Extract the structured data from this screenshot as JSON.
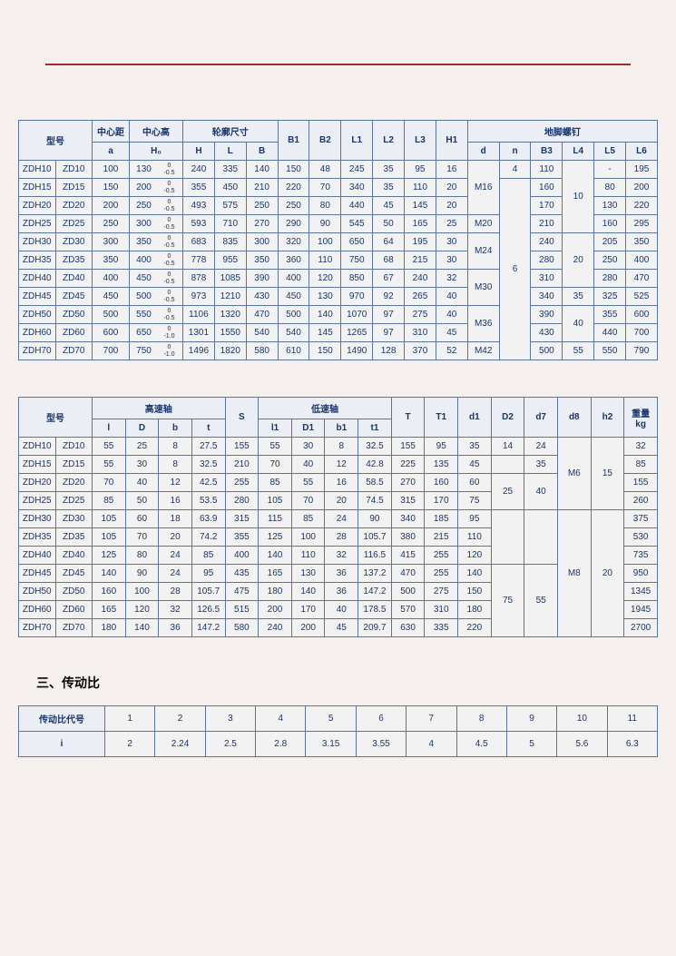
{
  "theme": {
    "border_color": "#5a7599",
    "header_bg": "#ebeff5",
    "cell_bg": "#f2f2f2",
    "line_color": "#9a2e2e",
    "text_color": "#19356c",
    "font_size_pt": 10
  },
  "table1": {
    "headers": {
      "model": "型号",
      "a_group": "中心距",
      "a": "a",
      "h0_group": "中心高",
      "h0": "H₀",
      "outline": "轮廓尺寸",
      "H": "H",
      "L": "L",
      "B": "B",
      "B1": "B1",
      "B2": "B2",
      "L1": "L1",
      "L2": "L2",
      "L3": "L3",
      "H1": "H1",
      "bolt": "地脚螺钉",
      "d": "d",
      "n": "n",
      "B3": "B3",
      "L4": "L4",
      "L5": "L5",
      "L6": "L6"
    },
    "rows": [
      {
        "m1": "ZDH10",
        "m2": "ZD10",
        "a": "100",
        "h0": "130",
        "tol": "0\n-0.5",
        "H": "240",
        "L": "335",
        "B": "140",
        "B1": "150",
        "B2": "48",
        "L1": "245",
        "L2": "35",
        "L3": "95",
        "H1": "16",
        "B3": "110",
        "L5": "-",
        "L6": "195"
      },
      {
        "m1": "ZDH15",
        "m2": "ZD15",
        "a": "150",
        "h0": "200",
        "tol": "0\n-0.5",
        "H": "355",
        "L": "450",
        "B": "210",
        "B1": "220",
        "B2": "70",
        "L1": "340",
        "L2": "35",
        "L3": "110",
        "H1": "20",
        "B3": "160",
        "L5": "80",
        "L6": "200"
      },
      {
        "m1": "ZDH20",
        "m2": "ZD20",
        "a": "200",
        "h0": "250",
        "tol": "0\n-0.5",
        "H": "493",
        "L": "575",
        "B": "250",
        "B1": "250",
        "B2": "80",
        "L1": "440",
        "L2": "45",
        "L3": "145",
        "H1": "20",
        "B3": "170",
        "L5": "130",
        "L6": "220"
      },
      {
        "m1": "ZDH25",
        "m2": "ZD25",
        "a": "250",
        "h0": "300",
        "tol": "0\n-0.5",
        "H": "593",
        "L": "710",
        "B": "270",
        "B1": "290",
        "B2": "90",
        "L1": "545",
        "L2": "50",
        "L3": "165",
        "H1": "25",
        "B3": "210",
        "L5": "160",
        "L6": "295"
      },
      {
        "m1": "ZDH30",
        "m2": "ZD30",
        "a": "300",
        "h0": "350",
        "tol": "0\n-0.5",
        "H": "683",
        "L": "835",
        "B": "300",
        "B1": "320",
        "B2": "100",
        "L1": "650",
        "L2": "64",
        "L3": "195",
        "H1": "30",
        "B3": "240",
        "L5": "205",
        "L6": "350"
      },
      {
        "m1": "ZDH35",
        "m2": "ZD35",
        "a": "350",
        "h0": "400",
        "tol": "0\n-0.5",
        "H": "778",
        "L": "955",
        "B": "350",
        "B1": "360",
        "B2": "110",
        "L1": "750",
        "L2": "68",
        "L3": "215",
        "H1": "30",
        "B3": "280",
        "L5": "250",
        "L6": "400"
      },
      {
        "m1": "ZDH40",
        "m2": "ZD40",
        "a": "400",
        "h0": "450",
        "tol": "0\n-0.5",
        "H": "878",
        "L": "1085",
        "B": "390",
        "B1": "400",
        "B2": "120",
        "L1": "850",
        "L2": "67",
        "L3": "240",
        "H1": "32",
        "B3": "310",
        "L5": "280",
        "L6": "470"
      },
      {
        "m1": "ZDH45",
        "m2": "ZD45",
        "a": "450",
        "h0": "500",
        "tol": "0\n-0.5",
        "H": "973",
        "L": "1210",
        "B": "430",
        "B1": "450",
        "B2": "130",
        "L1": "970",
        "L2": "92",
        "L3": "265",
        "H1": "40",
        "B3": "340",
        "L5": "325",
        "L6": "525"
      },
      {
        "m1": "ZDH50",
        "m2": "ZD50",
        "a": "500",
        "h0": "550",
        "tol": "0\n-0.5",
        "H": "1106",
        "L": "1320",
        "B": "470",
        "B1": "500",
        "B2": "140",
        "L1": "1070",
        "L2": "97",
        "L3": "275",
        "H1": "40",
        "B3": "390",
        "L5": "355",
        "L6": "600"
      },
      {
        "m1": "ZDH60",
        "m2": "ZD60",
        "a": "600",
        "h0": "650",
        "tol": "0\n-1.0",
        "H": "1301",
        "L": "1550",
        "B": "540",
        "B1": "540",
        "B2": "145",
        "L1": "1265",
        "L2": "97",
        "L3": "310",
        "H1": "45",
        "B3": "430",
        "L5": "440",
        "L6": "700"
      },
      {
        "m1": "ZDH70",
        "m2": "ZD70",
        "a": "700",
        "h0": "750",
        "tol": "0\n-1.0",
        "H": "1496",
        "L": "1820",
        "B": "580",
        "B1": "610",
        "B2": "150",
        "L1": "1490",
        "L2": "128",
        "L3": "370",
        "H1": "52",
        "B3": "500",
        "L5": "550",
        "L6": "790"
      }
    ],
    "d_groups": [
      {
        "label": "M16",
        "span": 3
      },
      {
        "label": "M20",
        "span": 1
      },
      {
        "label": "M24",
        "span": 2
      },
      {
        "label": "M30",
        "span": 2
      },
      {
        "label": "M36",
        "span": 2
      },
      {
        "label": "M42",
        "span": 1
      }
    ],
    "n_groups": [
      {
        "label": "4",
        "span": 1
      },
      {
        "label": "6",
        "span": 10
      }
    ],
    "L4_groups": [
      {
        "label": "10",
        "span": 4
      },
      {
        "label": "20",
        "span": 3
      },
      {
        "label": "35",
        "span": 1
      },
      {
        "label": "40",
        "span": 2
      },
      {
        "label": "55",
        "span": 1
      }
    ]
  },
  "table2": {
    "headers": {
      "model": "型号",
      "high": "高速轴",
      "l": "l",
      "D": "D",
      "b": "b",
      "t": "t",
      "S": "S",
      "low": "低速轴",
      "l1": "l1",
      "D1": "D1",
      "b1": "b1",
      "t1": "t1",
      "T": "T",
      "T1": "T1",
      "d1": "d1",
      "D2": "D2",
      "d7": "d7",
      "d8": "d8",
      "h2": "h2",
      "weight": "重量\nkg"
    },
    "rows": [
      {
        "m1": "ZDH10",
        "m2": "ZD10",
        "l": "55",
        "D": "25",
        "b": "8",
        "t": "27.5",
        "S": "155",
        "l1": "55",
        "D1": "30",
        "b1": "8",
        "t1": "32.5",
        "T": "155",
        "T1": "95",
        "d1": "35",
        "D2": "14",
        "d7": "24",
        "kg": "32"
      },
      {
        "m1": "ZDH15",
        "m2": "ZD15",
        "l": "55",
        "D": "30",
        "b": "8",
        "t": "32.5",
        "S": "210",
        "l1": "70",
        "D1": "40",
        "b1": "12",
        "t1": "42.8",
        "T": "225",
        "T1": "135",
        "d1": "45",
        "D2": "",
        "d7": "35",
        "kg": "85"
      },
      {
        "m1": "ZDH20",
        "m2": "ZD20",
        "l": "70",
        "D": "40",
        "b": "12",
        "t": "42.5",
        "S": "255",
        "l1": "85",
        "D1": "55",
        "b1": "16",
        "t1": "58.5",
        "T": "270",
        "T1": "160",
        "d1": "60",
        "D2": "25",
        "d7": "",
        "kg": "155"
      },
      {
        "m1": "ZDH25",
        "m2": "ZD25",
        "l": "85",
        "D": "50",
        "b": "16",
        "t": "53.5",
        "S": "280",
        "l1": "105",
        "D1": "70",
        "b1": "20",
        "t1": "74.5",
        "T": "315",
        "T1": "170",
        "d1": "75",
        "D2": "",
        "d7": "",
        "kg": "260"
      },
      {
        "m1": "ZDH30",
        "m2": "ZD30",
        "l": "105",
        "D": "60",
        "b": "18",
        "t": "63.9",
        "S": "315",
        "l1": "115",
        "D1": "85",
        "b1": "24",
        "t1": "90",
        "T": "340",
        "T1": "185",
        "d1": "95",
        "D2": "",
        "d7": "",
        "kg": "375"
      },
      {
        "m1": "ZDH35",
        "m2": "ZD35",
        "l": "105",
        "D": "70",
        "b": "20",
        "t": "74.2",
        "S": "355",
        "l1": "125",
        "D1": "100",
        "b1": "28",
        "t1": "105.7",
        "T": "380",
        "T1": "215",
        "d1": "110",
        "D2": "",
        "d7": "",
        "kg": "530"
      },
      {
        "m1": "ZDH40",
        "m2": "ZD40",
        "l": "125",
        "D": "80",
        "b": "24",
        "t": "85",
        "S": "400",
        "l1": "140",
        "D1": "110",
        "b1": "32",
        "t1": "116.5",
        "T": "415",
        "T1": "255",
        "d1": "120",
        "D2": "",
        "d7": "",
        "kg": "735"
      },
      {
        "m1": "ZDH45",
        "m2": "ZD45",
        "l": "140",
        "D": "90",
        "b": "24",
        "t": "95",
        "S": "435",
        "l1": "165",
        "D1": "130",
        "b1": "36",
        "t1": "137.2",
        "T": "470",
        "T1": "255",
        "d1": "140",
        "D2": "75",
        "d7": "55",
        "kg": "950"
      },
      {
        "m1": "ZDH50",
        "m2": "ZD50",
        "l": "160",
        "D": "100",
        "b": "28",
        "t": "105.7",
        "S": "475",
        "l1": "180",
        "D1": "140",
        "b1": "36",
        "t1": "147.2",
        "T": "500",
        "T1": "275",
        "d1": "150",
        "D2": "",
        "d7": "",
        "kg": "1345"
      },
      {
        "m1": "ZDH60",
        "m2": "ZD60",
        "l": "165",
        "D": "120",
        "b": "32",
        "t": "126.5",
        "S": "515",
        "l1": "200",
        "D1": "170",
        "b1": "40",
        "t1": "178.5",
        "T": "570",
        "T1": "310",
        "d1": "180",
        "D2": "",
        "d7": "",
        "kg": "1945"
      },
      {
        "m1": "ZDH70",
        "m2": "ZD70",
        "l": "180",
        "D": "140",
        "b": "36",
        "t": "147.2",
        "S": "580",
        "l1": "240",
        "D1": "200",
        "b1": "45",
        "t1": "209.7",
        "T": "630",
        "T1": "335",
        "d1": "220",
        "D2": "",
        "d7": "",
        "kg": "2700"
      }
    ],
    "D2_groups": [
      {
        "label": "14",
        "span": 1
      },
      {
        "label": "",
        "span": 1
      },
      {
        "label": "25",
        "span": 2
      },
      {
        "label": "",
        "span": 3
      },
      {
        "label": "75",
        "span": 4
      }
    ],
    "d7_groups": [
      {
        "label": "24",
        "span": 1
      },
      {
        "label": "35",
        "span": 1
      },
      {
        "label": "40",
        "span": 2
      },
      {
        "label": "",
        "span": 3
      },
      {
        "label": "55",
        "span": 4
      }
    ],
    "d8_groups": [
      {
        "label": "M6",
        "span": 4
      },
      {
        "label": "M8",
        "span": 7
      }
    ],
    "h2_groups": [
      {
        "label": "15",
        "span": 4
      },
      {
        "label": "20",
        "span": 7
      }
    ]
  },
  "section3": {
    "title": "三、传动比"
  },
  "table3": {
    "headers": {
      "code": "传动比代号",
      "i": "i"
    },
    "cols": [
      "1",
      "2",
      "3",
      "4",
      "5",
      "6",
      "7",
      "8",
      "9",
      "10",
      "11"
    ],
    "vals": [
      "2",
      "2.24",
      "2.5",
      "2.8",
      "3.15",
      "3.55",
      "4",
      "4.5",
      "5",
      "5.6",
      "6.3"
    ]
  }
}
